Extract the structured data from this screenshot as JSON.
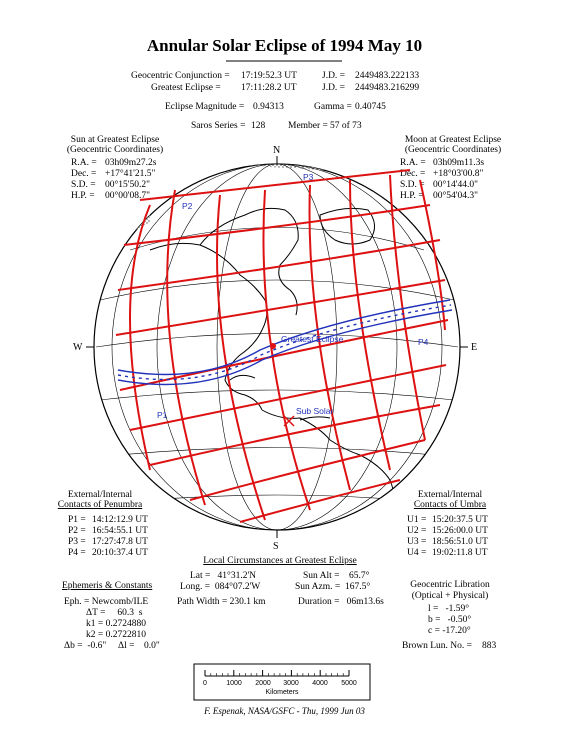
{
  "title": "Annular Solar Eclipse of 1994 May 10",
  "header": {
    "conj_label": "Geocentric Conjunction =",
    "conj_value": "17:19:52.3 UT",
    "jd1_label": "J.D. =",
    "jd1_value": "2449483.222133",
    "ge_label": "Greatest Eclipse =",
    "ge_value": "17:11:28.2 UT",
    "jd2_label": "J.D. =",
    "jd2_value": "2449483.216299",
    "mag_label": "Eclipse Magnitude =",
    "mag_value": "0.94313",
    "gamma_label": "Gamma =",
    "gamma_value": "0.40745",
    "saros_label": "Saros Series =",
    "saros_value": "128",
    "member_label": "Member =",
    "member_value": "57 of 73"
  },
  "sun": {
    "heading1": "Sun at Greatest Eclipse",
    "heading2": "(Geocentric Coordinates)",
    "rows": [
      {
        "label": "R.A. =",
        "value": "03h09m27.2s"
      },
      {
        "label": "Dec. =",
        "value": "+17°41'21.5\""
      },
      {
        "label": "S.D. =",
        "value": "00°15'50.2\""
      },
      {
        "label": "H.P. =",
        "value": "00°00'08.7\""
      }
    ]
  },
  "moon": {
    "heading1": "Moon at Greatest Eclipse",
    "heading2": "(Geocentric Coordinates)",
    "rows": [
      {
        "label": "R.A. =",
        "value": "03h09m11.3s"
      },
      {
        "label": "Dec. =",
        "value": "+18°03'00.8\""
      },
      {
        "label": "S.D. =",
        "value": "00°14'44.0\""
      },
      {
        "label": "H.P. =",
        "value": "00°54'04.3\""
      }
    ]
  },
  "map": {
    "north": "N",
    "south": "S",
    "east": "E",
    "west": "W",
    "greatest_eclipse_label": "Greatest Eclipse",
    "sub_solar_label": "Sub Solar",
    "contact_labels": [
      "P1",
      "P2",
      "P3",
      "P4"
    ],
    "colors": {
      "paths": "#dd1111",
      "umbra": "#2233bb",
      "land": "#000000"
    }
  },
  "penumbra": {
    "heading1": "External/Internal",
    "heading2": "Contacts of Penumbra",
    "rows": [
      {
        "label": "P1 =",
        "value": "14:12:12.9 UT"
      },
      {
        "label": "P2 =",
        "value": "16:54:55.1 UT"
      },
      {
        "label": "P3 =",
        "value": "17:27:47.8 UT"
      },
      {
        "label": "P4 =",
        "value": "20:10:37.4 UT"
      }
    ]
  },
  "umbra": {
    "heading1": "External/Internal",
    "heading2": "Contacts of Umbra",
    "rows": [
      {
        "label": "U1 =",
        "value": "15:20:37.5 UT"
      },
      {
        "label": "U2 =",
        "value": "15:26:00.0 UT"
      },
      {
        "label": "U3 =",
        "value": "18:56:51.0 UT"
      },
      {
        "label": "U4 =",
        "value": "19:02:11.8 UT"
      }
    ]
  },
  "local": {
    "heading": "Local Circumstances at Greatest Eclipse",
    "lat": "Lat =   41°31.2'N",
    "sun_alt": "Sun Alt =    65.7°",
    "long": "Long. =  084°07.2'W",
    "sun_azm": "Sun Azm. =  167.5°",
    "path_width": "Path Width = 230.1 km",
    "duration": "Duration =   06m13.6s"
  },
  "ephemeris": {
    "heading": "Ephemeris & Constants",
    "eph": "Eph. = Newcomb/ILE",
    "dt": "ΔT =     60.3  s",
    "k1": "k1 = 0.2724880",
    "k2": "k2 = 0.2722810",
    "db": "Δb =  -0.6\"",
    "dl": "Δl =    0.0\""
  },
  "libration": {
    "heading1": "Geocentric Libration",
    "heading2": "(Optical + Physical)",
    "l": "l =   -1.59°",
    "b": "b =   -0.50°",
    "c": "c = -17.20°",
    "brown_label": "Brown Lun. No. =",
    "brown_value": "883"
  },
  "scale": {
    "ticks": [
      "0",
      "1000",
      "2000",
      "3000",
      "4000",
      "5000"
    ],
    "unit": "Kilometers"
  },
  "credit": "F. Espenak, NASA/GSFC - Thu, 1999 Jun 03"
}
